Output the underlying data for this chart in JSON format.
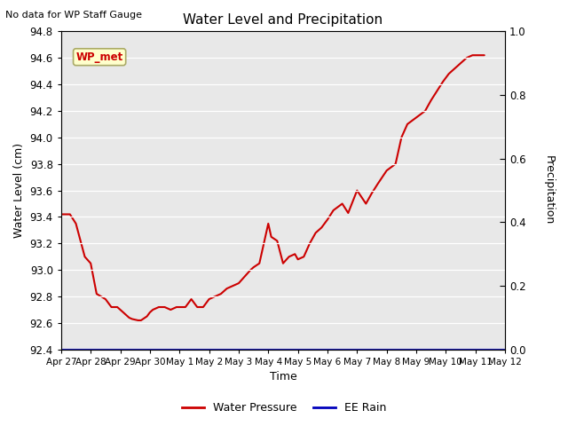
{
  "title": "Water Level and Precipitation",
  "top_left_text": "No data for WP Staff Gauge",
  "ylabel_left": "Water Level (cm)",
  "ylabel_right": "Precipitation",
  "xlabel": "Time",
  "ylim_left": [
    92.4,
    94.8
  ],
  "ylim_right": [
    0.0,
    1.0
  ],
  "background_color": "#e8e8e8",
  "line_color_wp": "#cc0000",
  "line_color_rain": "#0000bb",
  "legend_wp": "Water Pressure",
  "legend_rain": "EE Rain",
  "annotation_label": "WP_met",
  "annotation_color": "#cc0000",
  "annotation_bg": "#ffffcc",
  "annotation_border": "#aaaa66",
  "xtick_labels": [
    "Apr 27",
    "Apr 28",
    "Apr 29",
    "Apr 30",
    "May 1",
    "May 2",
    "May 3",
    "May 4",
    "May 5",
    "May 6",
    "May 7",
    "May 8",
    "May 9",
    "May 10",
    "May 11",
    "May 12"
  ],
  "yticks_left": [
    92.4,
    92.6,
    92.8,
    93.0,
    93.2,
    93.4,
    93.6,
    93.8,
    94.0,
    94.2,
    94.4,
    94.6,
    94.8
  ],
  "yticks_right": [
    0.0,
    0.2,
    0.4,
    0.6,
    0.8,
    1.0
  ],
  "water_pressure_x": [
    0.0,
    0.3,
    0.5,
    0.8,
    1.0,
    1.2,
    1.5,
    1.7,
    1.9,
    2.0,
    2.1,
    2.3,
    2.4,
    2.6,
    2.7,
    2.9,
    3.0,
    3.1,
    3.3,
    3.5,
    3.7,
    3.9,
    4.0,
    4.2,
    4.4,
    4.6,
    4.8,
    5.0,
    5.2,
    5.4,
    5.6,
    5.8,
    6.0,
    6.2,
    6.4,
    6.5,
    6.7,
    7.0,
    7.1,
    7.3,
    7.5,
    7.7,
    7.9,
    8.0,
    8.2,
    8.4,
    8.6,
    8.8,
    9.0,
    9.2,
    9.5,
    9.7,
    10.0,
    10.3,
    10.5,
    10.7,
    11.0,
    11.3,
    11.5,
    11.7,
    12.0,
    12.3,
    12.5,
    12.7,
    12.9,
    13.1,
    13.3,
    13.5,
    13.7,
    13.9,
    14.0,
    14.3
  ],
  "water_pressure_y": [
    93.42,
    93.42,
    93.35,
    93.1,
    93.05,
    92.82,
    92.78,
    92.72,
    92.72,
    92.7,
    92.68,
    92.64,
    92.63,
    92.62,
    92.62,
    92.65,
    92.68,
    92.7,
    92.72,
    92.72,
    92.7,
    92.72,
    92.72,
    92.72,
    92.78,
    92.72,
    92.72,
    92.78,
    92.8,
    92.82,
    92.86,
    92.88,
    92.9,
    92.95,
    93.0,
    93.02,
    93.05,
    93.35,
    93.25,
    93.22,
    93.05,
    93.1,
    93.12,
    93.08,
    93.1,
    93.2,
    93.28,
    93.32,
    93.38,
    93.45,
    93.5,
    93.43,
    93.6,
    93.5,
    93.58,
    93.65,
    93.75,
    93.8,
    94.0,
    94.1,
    94.15,
    94.2,
    94.28,
    94.35,
    94.42,
    94.48,
    94.52,
    94.56,
    94.6,
    94.62,
    94.62,
    94.62
  ],
  "xlim": [
    0,
    15
  ],
  "figsize": [
    6.4,
    4.8
  ],
  "dpi": 100
}
